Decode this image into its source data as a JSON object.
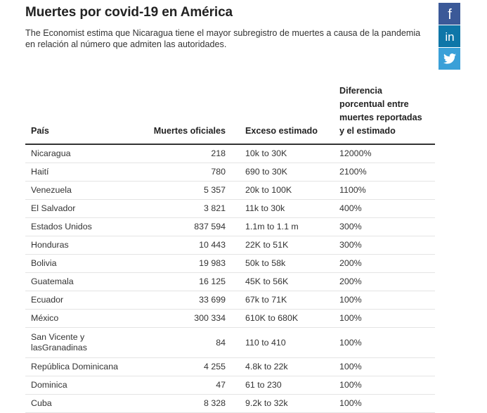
{
  "title": "Muertes por covid-19 en América",
  "subtitle": "The Economist estima que Nicaragua tiene el mayor subregistro de muertes a causa de la pandemia en relación al número que admiten las autoridades.",
  "social": [
    {
      "name": "facebook",
      "glyph": "f",
      "color": "#3b5998"
    },
    {
      "name": "linkedin",
      "glyph": "in",
      "color": "#0e76a8"
    },
    {
      "name": "twitter",
      "glyph": "bird",
      "color": "#3aa0d8"
    }
  ],
  "chart_data": {
    "type": "table",
    "columns": [
      "País",
      "Muertes oficiales",
      "Exceso estimado",
      "Diferencia porcentual entre muertes reportadas y el estimado"
    ],
    "rows": [
      [
        "Nicaragua",
        "218",
        "10k to 30K",
        "12000%"
      ],
      [
        "Haití",
        "780",
        "690 to 30K",
        "2100%"
      ],
      [
        "Venezuela",
        "5 357",
        "20k to 100K",
        "1100%"
      ],
      [
        "El Salvador",
        "3 821",
        "11k to 30k",
        "400%"
      ],
      [
        "Estados Unidos",
        "837 594",
        "1.1m to 1.1 m",
        "300%"
      ],
      [
        "Honduras",
        "10 443",
        "22K to 51K",
        "300%"
      ],
      [
        "Bolivia",
        "19 983",
        "50k to 58k",
        "200%"
      ],
      [
        "Guatemala",
        "16 125",
        "45K to 56K",
        "200%"
      ],
      [
        "Ecuador",
        "33 699",
        "67k to 71K",
        "100%"
      ],
      [
        "México",
        "300 334",
        "610K to 680K",
        "100%"
      ],
      [
        "San Vicente y lasGranadinas",
        "84",
        "110 to 410",
        "100%"
      ],
      [
        "República Dominicana",
        "4 255",
        "4.8k to 22k",
        "100%"
      ],
      [
        "Dominica",
        "47",
        "61 to 230",
        "100%"
      ],
      [
        "Cuba",
        "8 328",
        "9.2k to 32k",
        "100%"
      ]
    ]
  }
}
